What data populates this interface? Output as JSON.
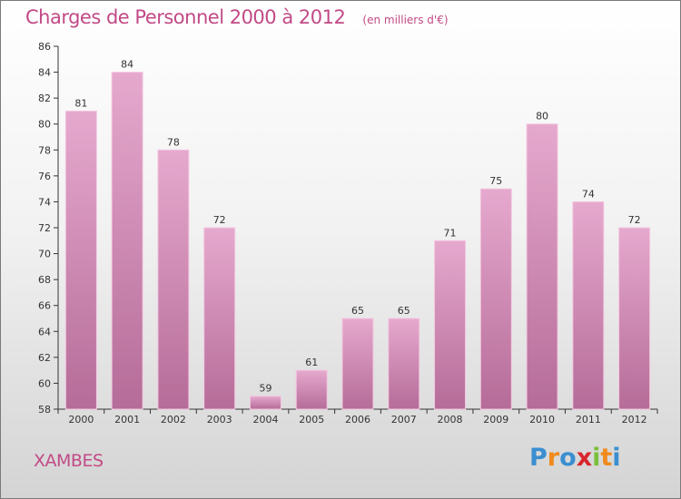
{
  "header": {
    "title": "Charges de Personnel 2000 à 2012",
    "subtitle": "(en milliers d'€)"
  },
  "footer": {
    "commune": "XAMBES",
    "logo": {
      "text": "Proxiti",
      "letters": [
        "P",
        "r",
        "o",
        "x",
        "i",
        "t",
        "i"
      ],
      "letter_colors": [
        "#3a8fd0",
        "#f08a1c",
        "#3a8fd0",
        "#d8262c",
        "#7bbf3a",
        "#f08a1c",
        "#3a8fd0"
      ]
    }
  },
  "colors": {
    "bar_light": "#e6a9ce",
    "bar_dark": "#b56c98",
    "text": "#c24a86",
    "axis": "#333333"
  },
  "chart_data": {
    "type": "bar",
    "title": "Charges de Personnel 2000 à 2012",
    "subtitle": "(en milliers d'€)",
    "categories": [
      "2000",
      "2001",
      "2002",
      "2003",
      "2004",
      "2005",
      "2006",
      "2007",
      "2008",
      "2009",
      "2010",
      "2011",
      "2012"
    ],
    "values": [
      81,
      84,
      78,
      72,
      59,
      61,
      65,
      65,
      71,
      75,
      80,
      74,
      72
    ],
    "data_labels": [
      "81",
      "84",
      "78",
      "72",
      "59",
      "61",
      "65",
      "65",
      "71",
      "75",
      "80",
      "74",
      "72"
    ],
    "ylim": [
      58,
      86
    ],
    "yticks": [
      58,
      60,
      62,
      64,
      66,
      68,
      70,
      72,
      74,
      76,
      78,
      80,
      82,
      84,
      86
    ],
    "xlabel": "",
    "ylabel": "",
    "grid": false,
    "legend": "none"
  }
}
